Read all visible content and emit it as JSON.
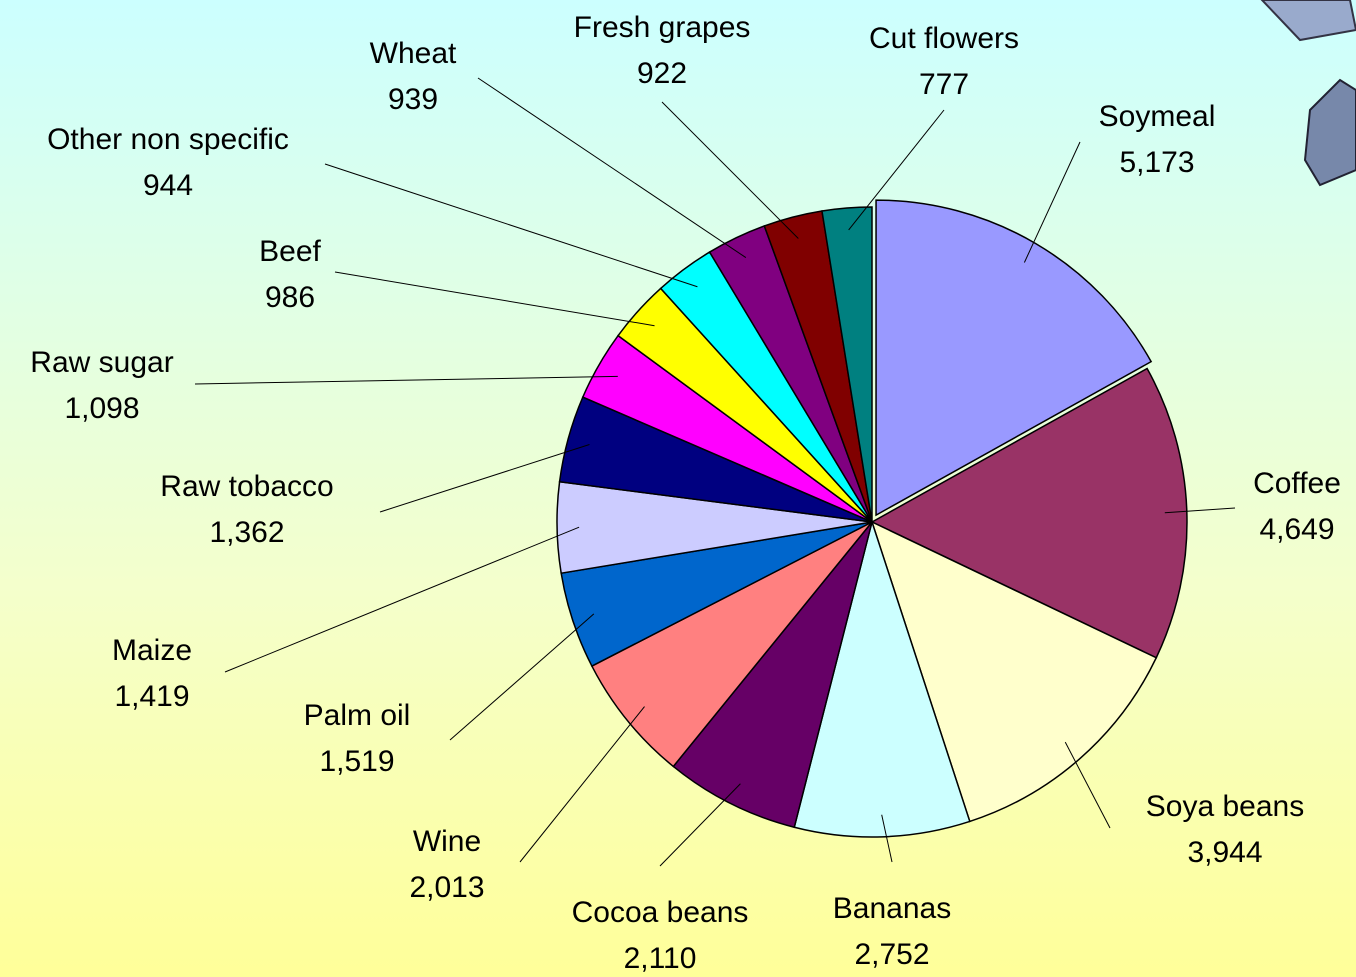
{
  "chart_data": {
    "type": "pie",
    "categories": [
      "Soymeal",
      "Coffee",
      "Soya beans",
      "Bananas",
      "Cocoa beans",
      "Wine",
      "Palm oil",
      "Maize",
      "Raw tobacco",
      "Raw sugar",
      "Beef",
      "Other non specific",
      "Wheat",
      "Fresh grapes",
      "Cut flowers"
    ],
    "values": [
      5173,
      4649,
      3944,
      2752,
      2110,
      2013,
      1519,
      1419,
      1362,
      1098,
      986,
      944,
      939,
      922,
      777
    ],
    "value_labels": [
      "5,173",
      "4,649",
      "3,944",
      "2,752",
      "2,110",
      "2,013",
      "1,519",
      "1,419",
      "1,362",
      "1,098",
      "986",
      "944",
      "939",
      "922",
      "777"
    ],
    "colors": [
      "#9999ff",
      "#993366",
      "#ffffcc",
      "#ccffff",
      "#660066",
      "#ff8080",
      "#0066cc",
      "#ccccff",
      "#000080",
      "#ff00ff",
      "#ffff00",
      "#00ffff",
      "#800080",
      "#800000",
      "#008080"
    ]
  }
}
